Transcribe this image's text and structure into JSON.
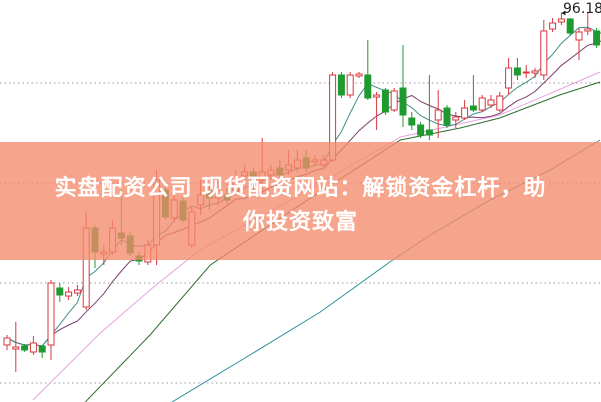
{
  "chart_data": {
    "type": "candlestick",
    "title": "",
    "xlabel": "",
    "ylabel": "",
    "ylim": [
      76.73,
      96.83
    ],
    "grid": "horizontal-dotted",
    "gridlines": [
      92.68,
      87.68,
      82.68,
      77.68
    ],
    "colors": {
      "up": "#d9363e",
      "down": "#1f9a30",
      "ma5": "#3f8f8a",
      "ma10": "#7b3f6e",
      "ma_pink": "#e6a3e0",
      "ma_green": "#2e6e2e",
      "ma_teal": "#2f8f9a"
    },
    "peak_label": "96.18",
    "candles": [
      [
        79.58,
        79.93,
        80.08,
        79.33
      ],
      [
        79.38,
        79.48,
        80.73,
        78.23
      ],
      [
        79.53,
        79.33,
        79.63,
        79.23
      ],
      [
        79.23,
        79.68,
        80.03,
        79.08
      ],
      [
        79.53,
        79.23,
        79.58,
        78.93
      ],
      [
        79.58,
        82.68,
        82.83,
        78.83
      ],
      [
        82.43,
        82.08,
        82.68,
        81.73
      ],
      [
        82.03,
        82.23,
        82.48,
        81.83
      ],
      [
        82.18,
        82.33,
        82.58,
        82.03
      ],
      [
        81.48,
        85.43,
        86.23,
        81.33
      ],
      [
        85.43,
        84.23,
        85.58,
        83.43
      ],
      [
        84.13,
        84.23,
        84.58,
        83.58
      ],
      [
        84.23,
        85.43,
        85.83,
        84.08
      ],
      [
        85.18,
        84.93,
        87.33,
        84.58
      ],
      [
        85.03,
        84.18,
        85.23,
        84.03
      ],
      [
        84.03,
        83.78,
        84.23,
        83.58
      ],
      [
        83.73,
        84.58,
        84.83,
        83.58
      ],
      [
        84.58,
        87.83,
        88.33,
        83.58
      ],
      [
        87.33,
        85.98,
        87.58,
        85.83
      ],
      [
        85.93,
        86.83,
        87.08,
        85.73
      ],
      [
        86.78,
        85.83,
        86.98,
        85.73
      ],
      [
        84.58,
        86.23,
        86.48,
        84.43
      ],
      [
        86.58,
        87.08,
        87.83,
        86.08
      ],
      [
        87.33,
        86.93,
        87.58,
        86.33
      ],
      [
        86.93,
        87.33,
        87.83,
        86.58
      ],
      [
        87.08,
        86.83,
        87.43,
        86.58
      ],
      [
        87.33,
        87.83,
        88.33,
        87.08
      ],
      [
        88.03,
        88.23,
        88.58,
        87.73
      ],
      [
        88.23,
        87.73,
        88.43,
        87.33
      ],
      [
        87.83,
        88.23,
        89.93,
        87.08
      ],
      [
        88.08,
        88.33,
        88.58,
        87.83
      ],
      [
        88.43,
        88.08,
        88.83,
        87.73
      ],
      [
        88.33,
        88.58,
        89.33,
        88.08
      ],
      [
        88.43,
        88.83,
        89.33,
        88.23
      ],
      [
        88.93,
        88.43,
        89.33,
        88.23
      ],
      [
        88.73,
        88.83,
        89.08,
        88.58
      ],
      [
        88.58,
        88.83,
        89.08,
        88.43
      ],
      [
        88.83,
        93.08,
        93.23,
        88.73
      ],
      [
        93.08,
        92.08,
        93.23,
        91.93
      ],
      [
        92.08,
        93.08,
        93.23,
        91.93
      ],
      [
        93.03,
        93.13,
        93.23,
        92.93
      ],
      [
        93.08,
        91.93,
        94.83,
        91.83
      ],
      [
        91.98,
        92.08,
        92.23,
        90.33
      ],
      [
        92.33,
        91.23,
        92.43,
        91.08
      ],
      [
        91.33,
        92.28,
        92.43,
        91.23
      ],
      [
        92.43,
        91.08,
        94.58,
        90.48
      ],
      [
        90.93,
        90.58,
        91.23,
        90.33
      ],
      [
        90.58,
        90.08,
        90.73,
        89.93
      ],
      [
        90.33,
        90.08,
        93.08,
        89.83
      ],
      [
        90.83,
        91.33,
        92.33,
        89.93
      ],
      [
        91.43,
        90.58,
        91.58,
        90.43
      ],
      [
        90.83,
        90.98,
        91.23,
        90.43
      ],
      [
        90.93,
        91.43,
        91.83,
        90.83
      ],
      [
        91.53,
        91.33,
        93.08,
        91.23
      ],
      [
        91.33,
        91.93,
        92.08,
        91.23
      ],
      [
        91.58,
        91.83,
        92.08,
        91.43
      ],
      [
        91.33,
        92.03,
        92.23,
        91.23
      ],
      [
        92.43,
        93.43,
        93.93,
        92.08
      ],
      [
        93.43,
        93.08,
        93.93,
        92.83
      ],
      [
        93.18,
        93.23,
        93.58,
        92.93
      ],
      [
        93.18,
        93.28,
        93.43,
        92.93
      ],
      [
        93.08,
        95.28,
        95.83,
        92.83
      ],
      [
        95.38,
        95.68,
        95.93,
        95.23
      ],
      [
        95.73,
        95.88,
        96.18,
        95.58
      ],
      [
        95.88,
        95.18,
        95.93,
        95.08
      ],
      [
        94.83,
        95.23,
        95.43,
        93.83
      ],
      [
        95.28,
        95.38,
        96.18,
        95.08
      ],
      [
        95.28,
        94.58,
        95.43,
        94.43
      ],
      [
        94.58,
        95.08,
        95.33,
        94.43
      ]
    ],
    "candle_fields": [
      "open",
      "close",
      "high",
      "low"
    ],
    "long_ma": [
      {
        "key": "ma_pink",
        "points": [
          [
            2.95,
            76.83
          ],
          [
            10.6,
            80.18
          ],
          [
            16.25,
            82.33
          ],
          [
            21.9,
            84.33
          ],
          [
            33.3,
            87.08
          ],
          [
            44.7,
            89.98
          ],
          [
            56,
            91.08
          ],
          [
            67.4,
            93.23
          ]
        ]
      },
      {
        "key": "ma_green",
        "points": [
          [
            8.9,
            76.73
          ],
          [
            16.25,
            80.08
          ],
          [
            23.1,
            83.58
          ],
          [
            33.3,
            86.58
          ],
          [
            44.7,
            89.83
          ],
          [
            51.5,
            90.43
          ],
          [
            56,
            90.93
          ],
          [
            62.8,
            92.08
          ],
          [
            67.4,
            92.73
          ]
        ]
      },
      {
        "key": "ma_teal",
        "points": [
          [
            18.75,
            76.73
          ],
          [
            27.6,
            79.08
          ],
          [
            35.6,
            81.23
          ],
          [
            43.5,
            83.73
          ],
          [
            48.1,
            85.08
          ],
          [
            54.9,
            86.83
          ],
          [
            61.7,
            88.33
          ],
          [
            67.4,
            89.83
          ]
        ]
      }
    ]
  },
  "banner": {
    "line1": "实盘配资公司 现货配资网站：解锁资金杠杆，助",
    "line2": "你投资致富"
  }
}
